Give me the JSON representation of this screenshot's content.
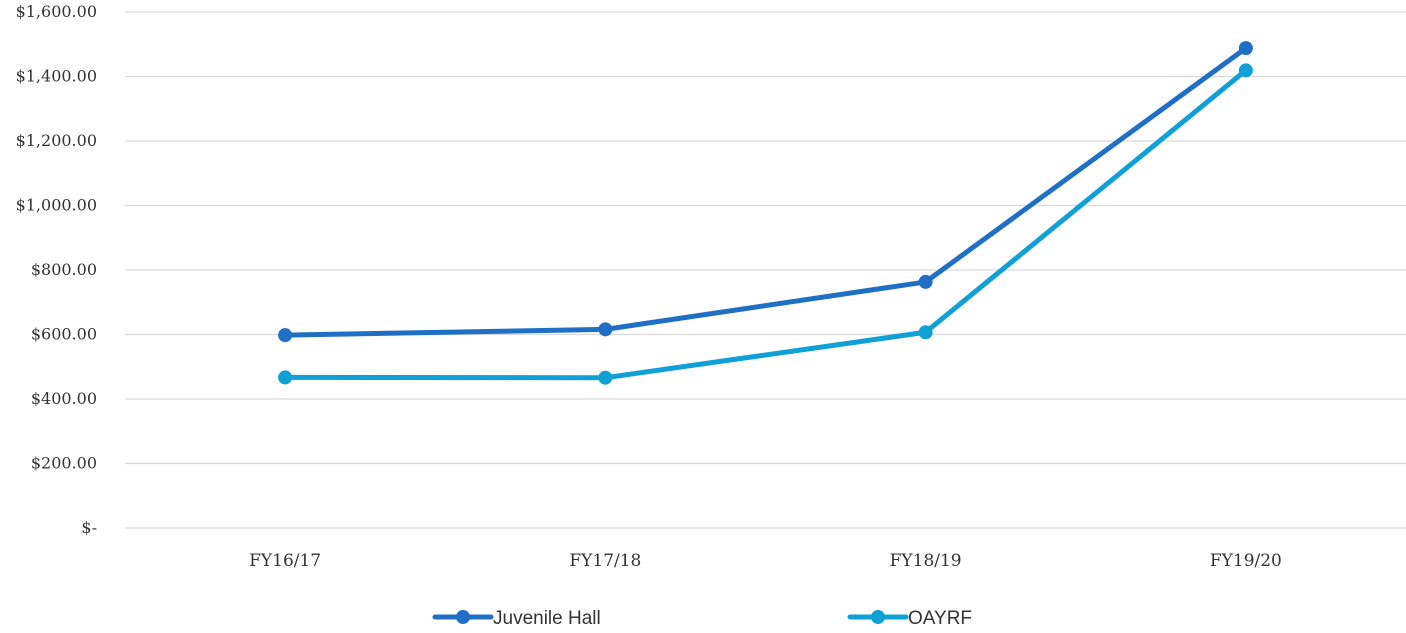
{
  "chart_data": {
    "type": "line",
    "title": "",
    "xlabel": "",
    "ylabel": "",
    "categories": [
      "FY16/17",
      "FY17/18",
      "FY18/19",
      "FY19/20"
    ],
    "y_ticks": [
      0,
      200,
      400,
      600,
      800,
      1000,
      1200,
      1400,
      1600
    ],
    "y_tick_labels": [
      "$-",
      "$200.00",
      "$400.00",
      "$600.00",
      "$800.00",
      "$1,000.00",
      "$1,200.00",
      "$1,400.00",
      "$1,600.00"
    ],
    "ylim": [
      0,
      1600
    ],
    "grid": true,
    "legend_position": "bottom",
    "series": [
      {
        "name": "Juvenile Hall",
        "color": "#1f6fc5",
        "values": [
          598,
          616,
          763,
          1488
        ]
      },
      {
        "name": "OAYRF",
        "color": "#0fa0d6",
        "values": [
          467,
          466,
          607,
          1419
        ]
      }
    ]
  }
}
